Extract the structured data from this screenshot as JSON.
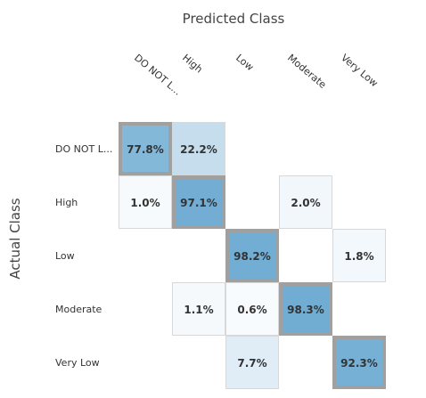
{
  "chart_data": {
    "type": "heatmap",
    "title": "",
    "xlabel": "Predicted Class",
    "ylabel": "Actual Class",
    "columns": [
      "DO NOT L...",
      "High",
      "Low",
      "Moderate",
      "Very Low"
    ],
    "rows": [
      "DO NOT L...",
      "High",
      "Low",
      "Moderate",
      "Very Low"
    ],
    "cells": [
      {
        "row": 0,
        "col": 0,
        "value": 77.8,
        "label": "77.8%"
      },
      {
        "row": 0,
        "col": 1,
        "value": 22.2,
        "label": "22.2%"
      },
      {
        "row": 1,
        "col": 0,
        "value": 1.0,
        "label": "1.0%"
      },
      {
        "row": 1,
        "col": 1,
        "value": 97.1,
        "label": "97.1%"
      },
      {
        "row": 1,
        "col": 3,
        "value": 2.0,
        "label": "2.0%"
      },
      {
        "row": 2,
        "col": 2,
        "value": 98.2,
        "label": "98.2%"
      },
      {
        "row": 2,
        "col": 4,
        "value": 1.8,
        "label": "1.8%"
      },
      {
        "row": 3,
        "col": 1,
        "value": 1.1,
        "label": "1.1%"
      },
      {
        "row": 3,
        "col": 2,
        "value": 0.6,
        "label": "0.6%"
      },
      {
        "row": 3,
        "col": 3,
        "value": 98.3,
        "label": "98.3%"
      },
      {
        "row": 4,
        "col": 2,
        "value": 7.7,
        "label": "7.7%"
      },
      {
        "row": 4,
        "col": 4,
        "value": 92.3,
        "label": "92.3%"
      }
    ],
    "diagonal_highlight": true,
    "colors": {
      "diagonal_border": "#a0a0a0",
      "cell_border": "#d8d8d8",
      "low_fill": "#ffffff",
      "high_fill": "#70acd3"
    }
  }
}
